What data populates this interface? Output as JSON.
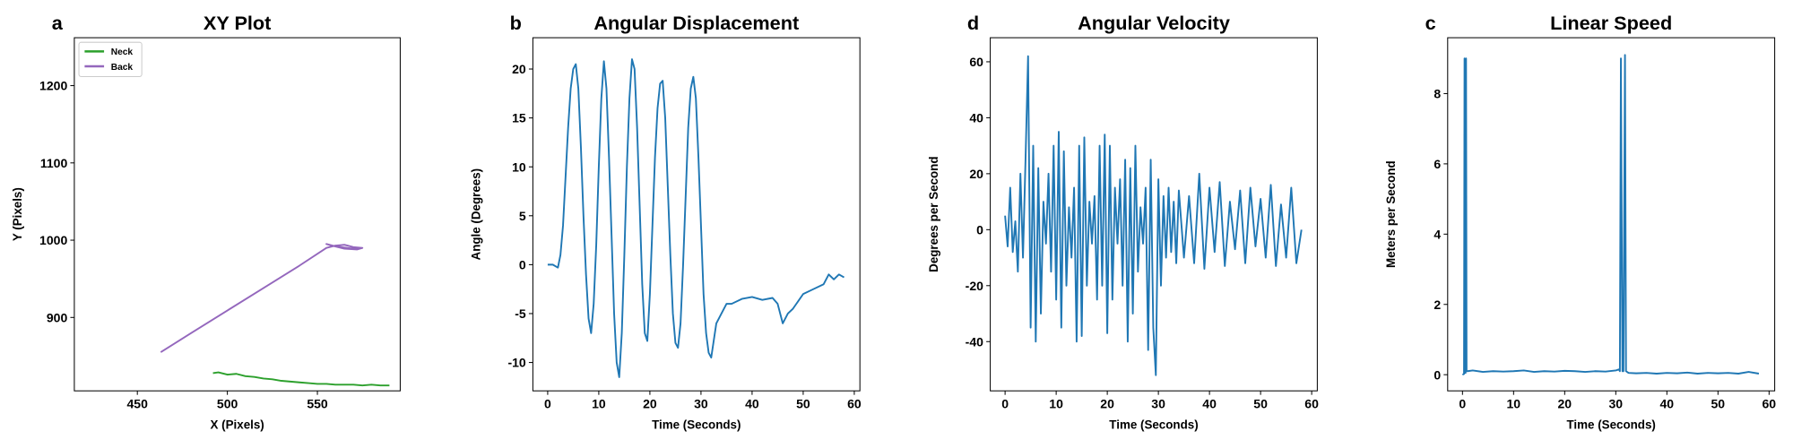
{
  "chart_data": [
    {
      "type": "line",
      "panel_label": "a",
      "title": "XY Plot",
      "x_label": "X (Pixels)",
      "y_label": "Y (Pixels)",
      "xlim": [
        415,
        596
      ],
      "ylim": [
        805,
        1262
      ],
      "xticks": [
        450,
        500,
        550
      ],
      "yticks": [
        900,
        1000,
        1100,
        1200
      ],
      "legend": "upper left",
      "series": [
        {
          "name": "Neck",
          "color": "#2ca02c",
          "x": [
            492,
            495,
            500,
            505,
            510,
            515,
            520,
            525,
            530,
            535,
            540,
            545,
            550,
            555,
            560,
            565,
            570,
            575,
            580,
            585,
            590
          ],
          "values": [
            828,
            829,
            826,
            827,
            824,
            823,
            821,
            820,
            818,
            817,
            816,
            815,
            814,
            814,
            813,
            813,
            813,
            812,
            813,
            812,
            812
          ]
        },
        {
          "name": "Back",
          "color": "#9467bd",
          "x": [
            463,
            480,
            500,
            520,
            540,
            555,
            560,
            565,
            570,
            575,
            572,
            565,
            558,
            555,
            560,
            570,
            575
          ],
          "values": [
            855,
            880,
            909,
            938,
            967,
            990,
            993,
            994,
            991,
            990,
            988,
            989,
            993,
            995,
            992,
            989,
            990
          ]
        }
      ]
    },
    {
      "type": "line",
      "panel_label": "b",
      "title": "Angular Displacement",
      "x_label": "Time (Seconds)",
      "y_label": "Angle (Degrees)",
      "xlim": [
        -2.9,
        61.1
      ],
      "ylim": [
        -12.9,
        23.2
      ],
      "xticks": [
        0,
        10,
        20,
        30,
        40,
        50,
        60
      ],
      "yticks": [
        -10,
        -5,
        0,
        5,
        10,
        15,
        20
      ],
      "series": [
        {
          "color": "#1f77b4",
          "x": [
            0,
            1,
            2,
            2.5,
            3,
            3.5,
            4,
            4.5,
            5,
            5.5,
            6,
            6.5,
            7,
            7.5,
            8,
            8.5,
            9,
            9.5,
            10,
            10.5,
            11,
            11.5,
            12,
            12.5,
            13,
            13.5,
            14,
            14.5,
            15,
            15.5,
            16,
            16.5,
            17,
            17.5,
            18,
            18.5,
            19,
            19.5,
            20,
            20.5,
            21,
            21.5,
            22,
            22.5,
            23,
            23.5,
            24,
            24.5,
            25,
            25.5,
            26,
            26.5,
            27,
            27.5,
            28,
            28.5,
            29,
            29.5,
            30,
            30.5,
            31,
            31.5,
            32,
            33,
            34,
            35,
            36,
            38,
            40,
            42,
            44,
            45,
            46,
            47,
            48,
            50,
            52,
            54,
            55,
            56,
            57,
            58
          ],
          "values": [
            0,
            0,
            -0.3,
            1,
            4,
            9,
            14,
            18,
            20,
            20.5,
            18,
            12,
            5,
            -1,
            -5.5,
            -7,
            -4,
            2,
            10,
            17,
            20.8,
            18,
            11,
            3,
            -5,
            -10,
            -11.5,
            -7,
            1,
            10,
            17,
            21,
            20,
            14,
            6,
            -2,
            -7,
            -7.8,
            -3,
            4,
            11,
            16,
            18.5,
            18.8,
            15,
            8,
            1,
            -5,
            -8,
            -8.5,
            -6,
            0,
            7,
            14,
            18,
            19.2,
            17,
            11,
            4,
            -3,
            -7,
            -9,
            -9.5,
            -6,
            -5,
            -4,
            -4,
            -3.5,
            -3.3,
            -3.6,
            -3.4,
            -4,
            -6,
            -5,
            -4.5,
            -3,
            -2.5,
            -2,
            -1,
            -1.5,
            -1,
            -1.3
          ]
        }
      ]
    },
    {
      "type": "line",
      "panel_label": "d",
      "title": "Angular Velocity",
      "x_label": "Time (Seconds)",
      "y_label": "Degrees per Second",
      "xlim": [
        -2.9,
        61.1
      ],
      "ylim": [
        -57.6,
        68.6
      ],
      "xticks": [
        0,
        10,
        20,
        30,
        40,
        50,
        60
      ],
      "yticks": [
        -40,
        -20,
        0,
        20,
        40,
        60
      ],
      "series": [
        {
          "color": "#1f77b4",
          "x": [
            0,
            0.5,
            1,
            1.5,
            2,
            2.5,
            3,
            3.5,
            4,
            4.5,
            5,
            5.5,
            6,
            6.5,
            7,
            7.5,
            8,
            8.5,
            9,
            9.5,
            10,
            10.5,
            11,
            11.5,
            12,
            12.5,
            13,
            13.5,
            14,
            14.5,
            15,
            15.5,
            16,
            16.5,
            17,
            17.5,
            18,
            18.5,
            19,
            19.5,
            20,
            20.5,
            21,
            21.5,
            22,
            22.5,
            23,
            23.5,
            24,
            24.5,
            25,
            25.5,
            26,
            26.5,
            27,
            27.5,
            28,
            28.5,
            29,
            29.5,
            30,
            30.5,
            31,
            31.5,
            32,
            32.5,
            33,
            33.5,
            34,
            35,
            36,
            37,
            38,
            39,
            40,
            41,
            42,
            43,
            44,
            45,
            46,
            47,
            48,
            49,
            50,
            51,
            52,
            53,
            54,
            55,
            56,
            57,
            58
          ],
          "values": [
            5,
            -6,
            15,
            -8,
            3,
            -15,
            20,
            -10,
            25,
            62,
            -35,
            30,
            -40,
            22,
            -30,
            10,
            -5,
            20,
            -15,
            30,
            -25,
            35,
            -35,
            28,
            -20,
            8,
            -10,
            15,
            -40,
            30,
            -38,
            33,
            -20,
            10,
            -5,
            12,
            -25,
            30,
            -20,
            34,
            -37,
            30,
            -25,
            15,
            -5,
            18,
            -20,
            25,
            -40,
            22,
            -30,
            30,
            -15,
            8,
            -5,
            15,
            -43,
            25,
            -35,
            -52,
            18,
            -20,
            12,
            -10,
            15,
            -8,
            10,
            -12,
            14,
            -10,
            12,
            -12,
            20,
            -14,
            15,
            -8,
            17,
            -13,
            10,
            -7,
            14,
            -12,
            15,
            -6,
            11,
            -10,
            16,
            -13,
            9,
            -10,
            15,
            -12,
            0
          ]
        }
      ]
    },
    {
      "type": "line",
      "panel_label": "c",
      "title": "Linear Speed",
      "x_label": "Time (Seconds)",
      "y_label": "Meters per Second",
      "xlim": [
        -2.9,
        61.1
      ],
      "ylim": [
        -0.46,
        9.59
      ],
      "xticks": [
        0,
        10,
        20,
        30,
        40,
        50,
        60
      ],
      "yticks": [
        0,
        2,
        4,
        6,
        8
      ],
      "series": [
        {
          "color": "#1f77b4",
          "x": [
            0,
            0.3,
            0.4,
            0.5,
            0.6,
            0.7,
            0.8,
            1,
            2,
            4,
            6,
            8,
            10,
            12,
            14,
            16,
            18,
            20,
            22,
            24,
            26,
            28,
            30,
            30.6,
            30.8,
            31,
            31.3,
            31.5,
            31.8,
            32,
            32.5,
            34,
            36,
            38,
            40,
            42,
            44,
            46,
            48,
            50,
            52,
            54,
            56,
            58
          ],
          "values": [
            0,
            0.02,
            9,
            0.05,
            0.05,
            9,
            0.1,
            0.1,
            0.12,
            0.08,
            0.1,
            0.09,
            0.1,
            0.12,
            0.08,
            0.1,
            0.09,
            0.11,
            0.1,
            0.08,
            0.1,
            0.09,
            0.12,
            0.15,
            0.1,
            9,
            0.1,
            0.1,
            9.1,
            0.1,
            0.05,
            0.04,
            0.05,
            0.03,
            0.05,
            0.04,
            0.06,
            0.03,
            0.05,
            0.04,
            0.05,
            0.03,
            0.08,
            0.03
          ]
        }
      ]
    }
  ]
}
